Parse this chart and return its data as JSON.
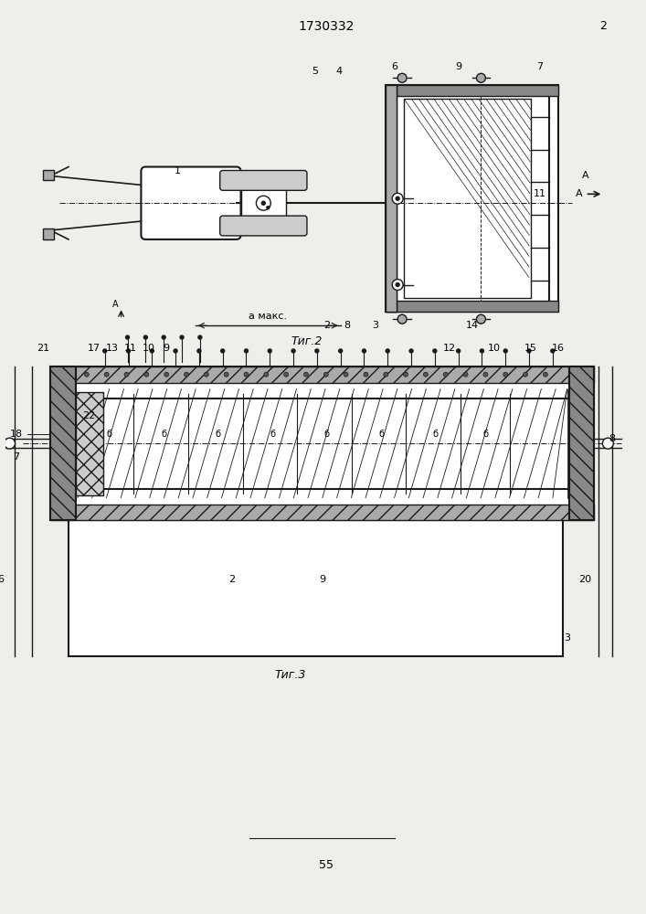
{
  "title": "1730332",
  "page_num": "2",
  "fig2_label": "Τиг.2",
  "fig3_label": "Τиг.3",
  "page_footer": "55",
  "bg_color": "#f0eeea",
  "line_color": "#1a1a1a",
  "hatch_color": "#333333"
}
